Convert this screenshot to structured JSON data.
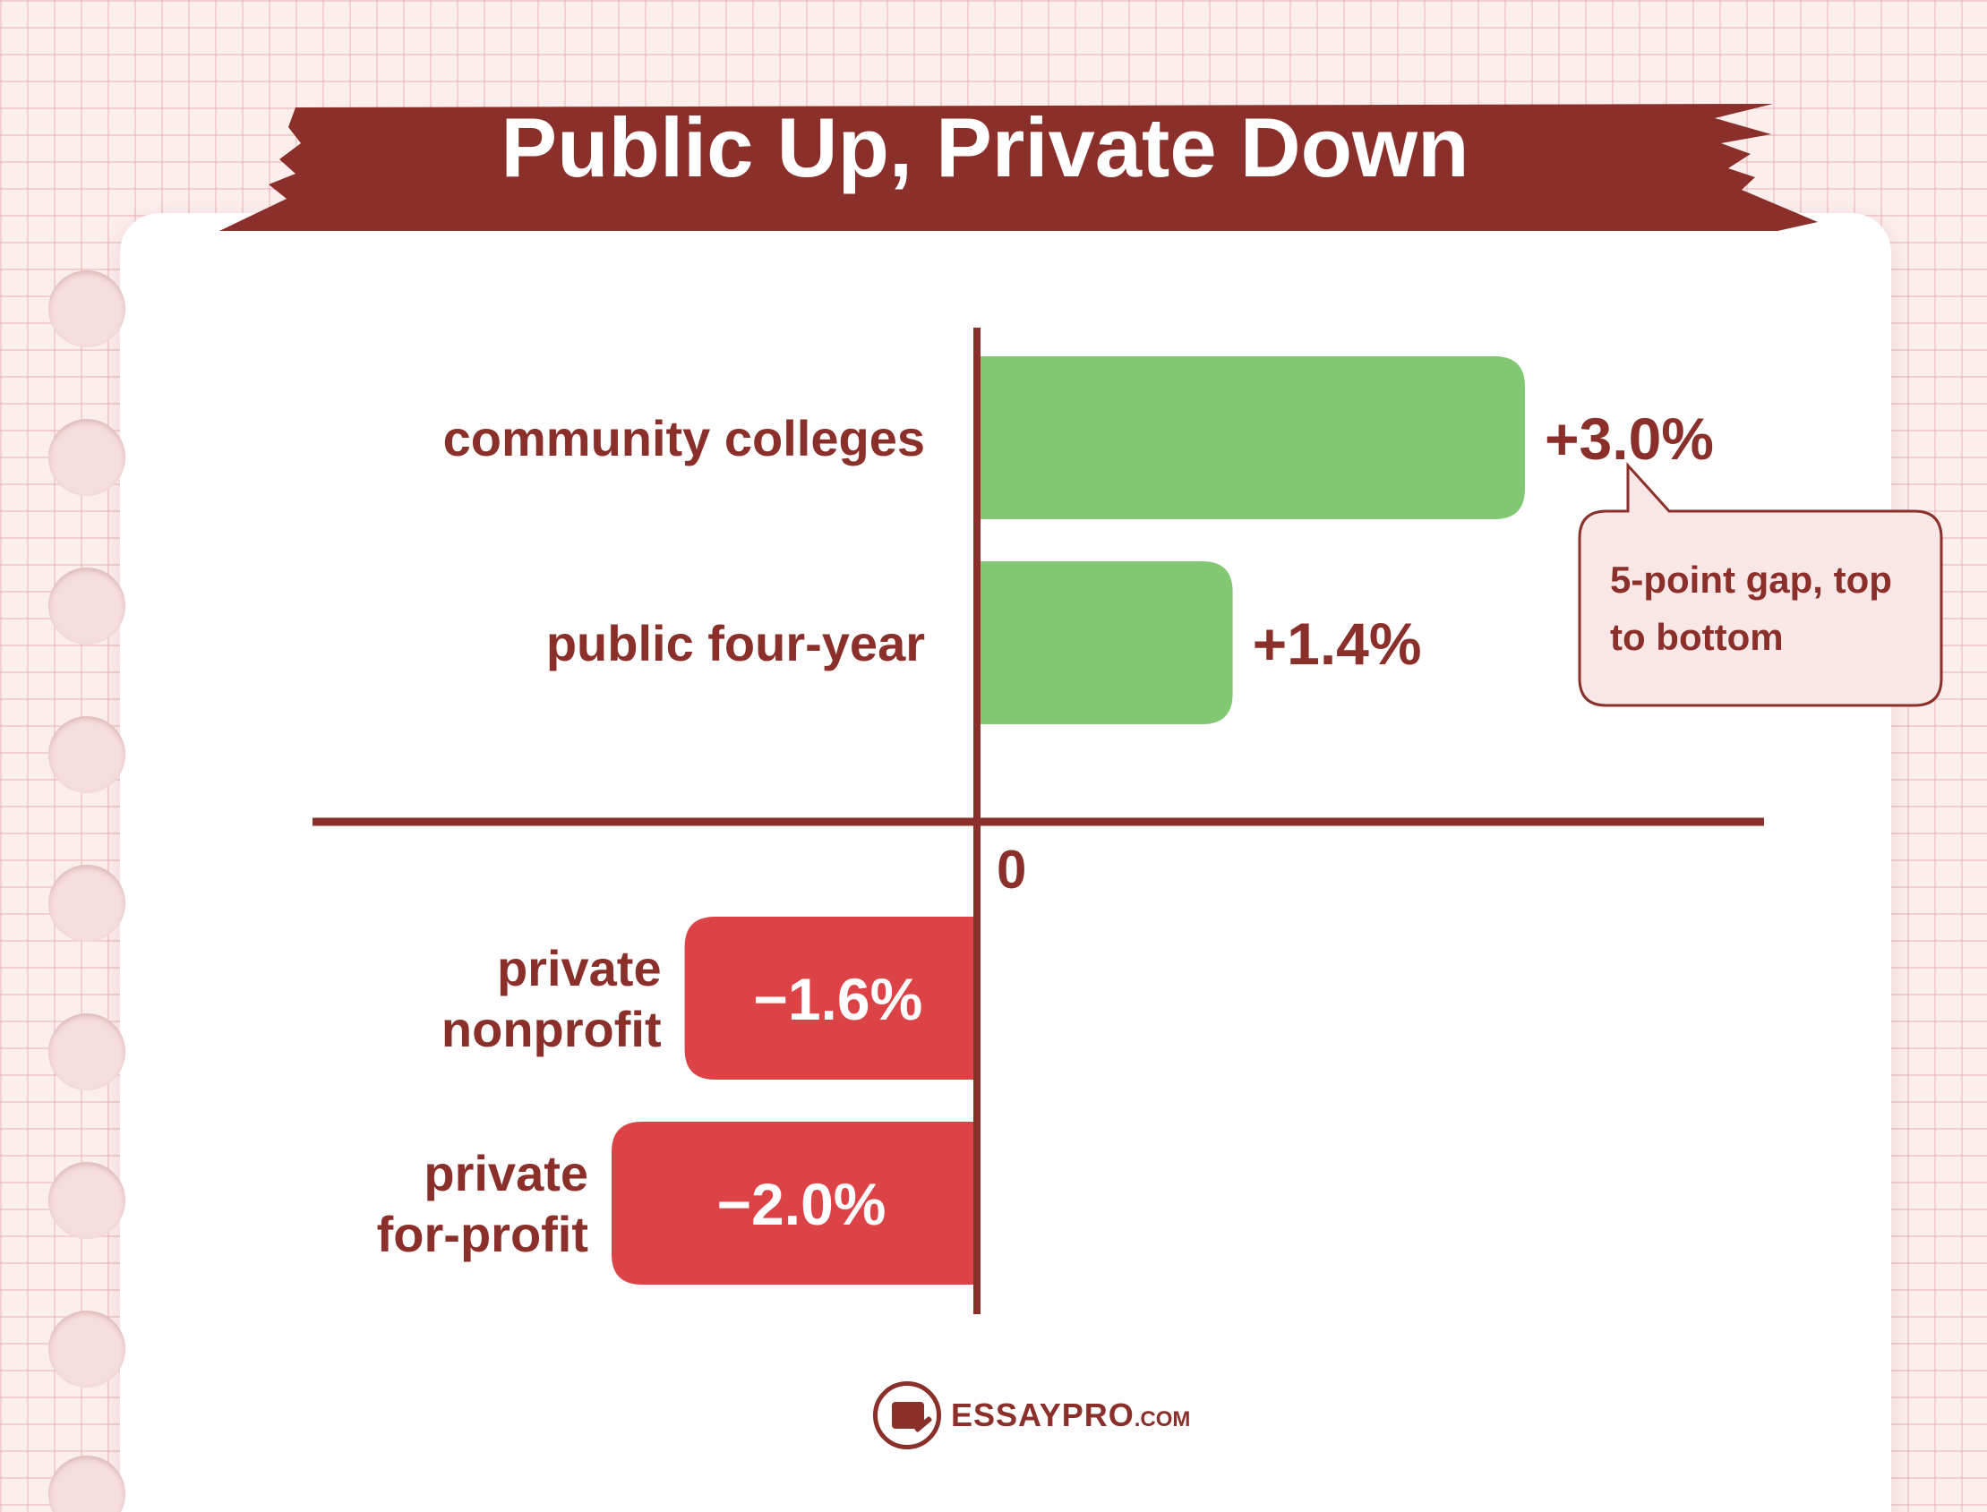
{
  "page": {
    "background_color": "#fdeeee",
    "grid_color": "#e8b4b4",
    "paper_color": "#ffffff"
  },
  "banner": {
    "title": "Public Up, Private Down",
    "color": "#8a2f2a"
  },
  "chart_data": {
    "type": "bar",
    "orientation": "horizontal",
    "title": "Public Up, Private Down",
    "subtitle": "",
    "xlabel": "",
    "ylabel": "",
    "categories": [
      "community colleges",
      "public four-year",
      "private nonprofit",
      "private for-profit"
    ],
    "values": [
      3.0,
      1.4,
      -1.6,
      -2.0
    ],
    "value_labels": [
      "+3.0%",
      "+1.4%",
      "−1.6%",
      "−2.0%"
    ],
    "zero_label": "0",
    "xlim": [
      -2.0,
      3.0
    ],
    "grid": false,
    "legend": "none",
    "colors": {
      "positive": "#82c772",
      "negative": "#dc4346",
      "axis": "#8a2f2a",
      "text": "#8a2f2a"
    },
    "annotations": [
      {
        "text": "5-point gap, top to bottom",
        "points_to": "community colleges"
      }
    ]
  },
  "callout": {
    "text": "5-point gap, top to bottom",
    "background": "#f9e6e6",
    "border": "#8a2f2a"
  },
  "footer": {
    "logo_icon": "essaypro-logo-icon",
    "brand_main": "ESSAYPRO",
    "brand_suffix": ".COM"
  }
}
